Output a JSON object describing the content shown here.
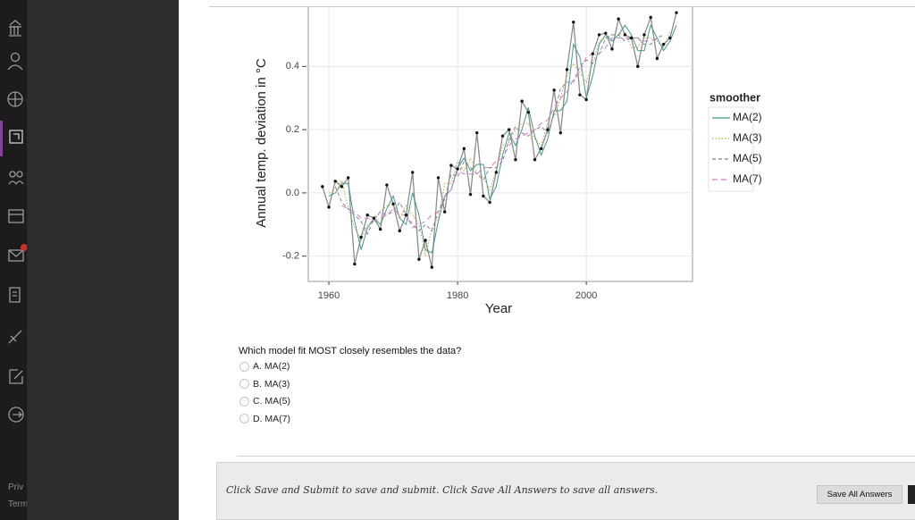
{
  "sidebar": {
    "footer_links": [
      "Priv",
      "Term"
    ]
  },
  "chart_data": {
    "type": "line",
    "x_label": "Year",
    "y_label": "Annual temp. deviation in °C",
    "x": [
      1959,
      1960,
      1961,
      1962,
      1963,
      1964,
      1965,
      1966,
      1967,
      1968,
      1969,
      1970,
      1971,
      1972,
      1973,
      1974,
      1975,
      1976,
      1977,
      1978,
      1979,
      1980,
      1981,
      1982,
      1983,
      1984,
      1985,
      1986,
      1987,
      1988,
      1989,
      1990,
      1991,
      1992,
      1993,
      1994,
      1995,
      1996,
      1997,
      1998,
      1999,
      2000,
      2001,
      2002,
      2003,
      2004,
      2005,
      2006,
      2007,
      2008,
      2009,
      2010,
      2011,
      2012,
      2013,
      2014
    ],
    "values": [
      0.02,
      -0.045,
      0.037,
      0.02,
      0.048,
      -0.225,
      -0.14,
      -0.07,
      -0.08,
      -0.115,
      0.025,
      -0.035,
      -0.12,
      -0.07,
      0.065,
      -0.21,
      -0.15,
      -0.235,
      0.048,
      -0.06,
      0.087,
      0.076,
      0.14,
      -0.005,
      0.19,
      -0.01,
      -0.03,
      0.065,
      0.18,
      0.2,
      0.105,
      0.29,
      0.255,
      0.105,
      0.14,
      0.2,
      0.325,
      0.19,
      0.39,
      0.54,
      0.31,
      0.295,
      0.44,
      0.5,
      0.505,
      0.455,
      0.55,
      0.5,
      0.49,
      0.4,
      0.5,
      0.555,
      0.425,
      0.47,
      0.49,
      0.57
    ],
    "color": "#8c8c8c",
    "legend_title": "smoother",
    "series": [
      {
        "name": "MA(2)",
        "color": "#3f9a8c",
        "dash": "solid",
        "values": [
          null,
          -0.01,
          0.0,
          0.03,
          0.03,
          -0.09,
          -0.18,
          -0.11,
          -0.08,
          -0.1,
          -0.05,
          -0.01,
          -0.08,
          -0.1,
          0.0,
          -0.07,
          -0.18,
          -0.19,
          -0.09,
          -0.01,
          0.01,
          0.08,
          0.11,
          0.07,
          0.09,
          0.09,
          -0.02,
          0.02,
          0.12,
          0.19,
          0.15,
          0.2,
          0.27,
          0.18,
          0.12,
          0.17,
          0.26,
          0.26,
          0.29,
          0.47,
          0.43,
          0.3,
          0.37,
          0.47,
          0.5,
          0.48,
          0.5,
          0.53,
          0.5,
          0.45,
          0.45,
          0.53,
          0.49,
          0.45,
          0.48,
          0.53
        ]
      },
      {
        "name": "MA(3)",
        "color": "#c9a23a",
        "dash": "dotted",
        "values": [
          null,
          0.0,
          0.0,
          0.04,
          -0.05,
          -0.11,
          -0.15,
          -0.1,
          -0.09,
          -0.06,
          -0.04,
          -0.04,
          -0.08,
          -0.04,
          -0.07,
          -0.1,
          -0.2,
          -0.11,
          -0.08,
          0.03,
          0.03,
          0.1,
          0.07,
          0.11,
          0.06,
          0.05,
          0.01,
          0.07,
          0.15,
          0.16,
          0.2,
          0.22,
          0.22,
          0.17,
          0.15,
          0.22,
          0.24,
          0.3,
          0.37,
          0.41,
          0.38,
          0.35,
          0.41,
          0.48,
          0.49,
          0.5,
          0.5,
          0.51,
          0.46,
          0.46,
          0.49,
          0.49,
          0.48,
          0.46,
          0.51,
          null
        ]
      },
      {
        "name": "MA(5)",
        "color": "#8a7c9e",
        "dash": "dashed",
        "values": [
          null,
          null,
          0.02,
          -0.03,
          -0.05,
          -0.07,
          -0.09,
          -0.13,
          -0.08,
          -0.06,
          -0.07,
          -0.06,
          -0.03,
          -0.07,
          -0.1,
          -0.12,
          -0.1,
          -0.12,
          -0.06,
          -0.02,
          0.06,
          0.05,
          0.1,
          0.08,
          0.06,
          0.04,
          0.08,
          0.08,
          0.1,
          0.17,
          0.21,
          0.19,
          0.18,
          0.2,
          0.21,
          0.19,
          0.25,
          0.33,
          0.35,
          0.35,
          0.4,
          0.42,
          0.41,
          0.44,
          0.49,
          0.5,
          0.5,
          0.48,
          0.49,
          0.49,
          0.47,
          0.47,
          0.49,
          0.5,
          null,
          null
        ]
      },
      {
        "name": "MA(7)",
        "color": "#d77ac8",
        "dash": "longdash",
        "values": [
          null,
          null,
          null,
          -0.04,
          -0.05,
          -0.06,
          -0.08,
          -0.08,
          -0.09,
          -0.08,
          -0.07,
          -0.05,
          -0.07,
          -0.07,
          -0.11,
          -0.1,
          -0.09,
          -0.07,
          -0.06,
          -0.01,
          0.01,
          0.07,
          0.06,
          0.06,
          0.06,
          0.08,
          0.08,
          0.1,
          0.11,
          0.15,
          0.17,
          0.18,
          0.19,
          0.2,
          0.22,
          0.23,
          0.27,
          0.3,
          0.32,
          0.36,
          0.38,
          0.43,
          0.44,
          0.44,
          0.46,
          0.49,
          0.49,
          0.49,
          0.49,
          0.49,
          0.48,
          0.48,
          0.49,
          null,
          null,
          null
        ]
      }
    ],
    "xlim": [
      1956.8,
      2016.5
    ],
    "ylim": [
      -0.28,
      0.61
    ],
    "xticks": [
      1960,
      1980,
      2000
    ],
    "yticks": [
      -0.2,
      {
        "value": 0,
        "label": "0.0"
      },
      0.2,
      0.4
    ],
    "grid": true
  },
  "question": {
    "prompt": "Which model fit MOST closely resembles the data?",
    "options": [
      "A. MA(2)",
      "B. MA(3)",
      "C. MA(5)",
      "D. MA(7)"
    ]
  },
  "footer": {
    "instructions": "Click Save and Submit to save and submit. Click Save All Answers to save all answers.",
    "button": "Save All Answers"
  }
}
